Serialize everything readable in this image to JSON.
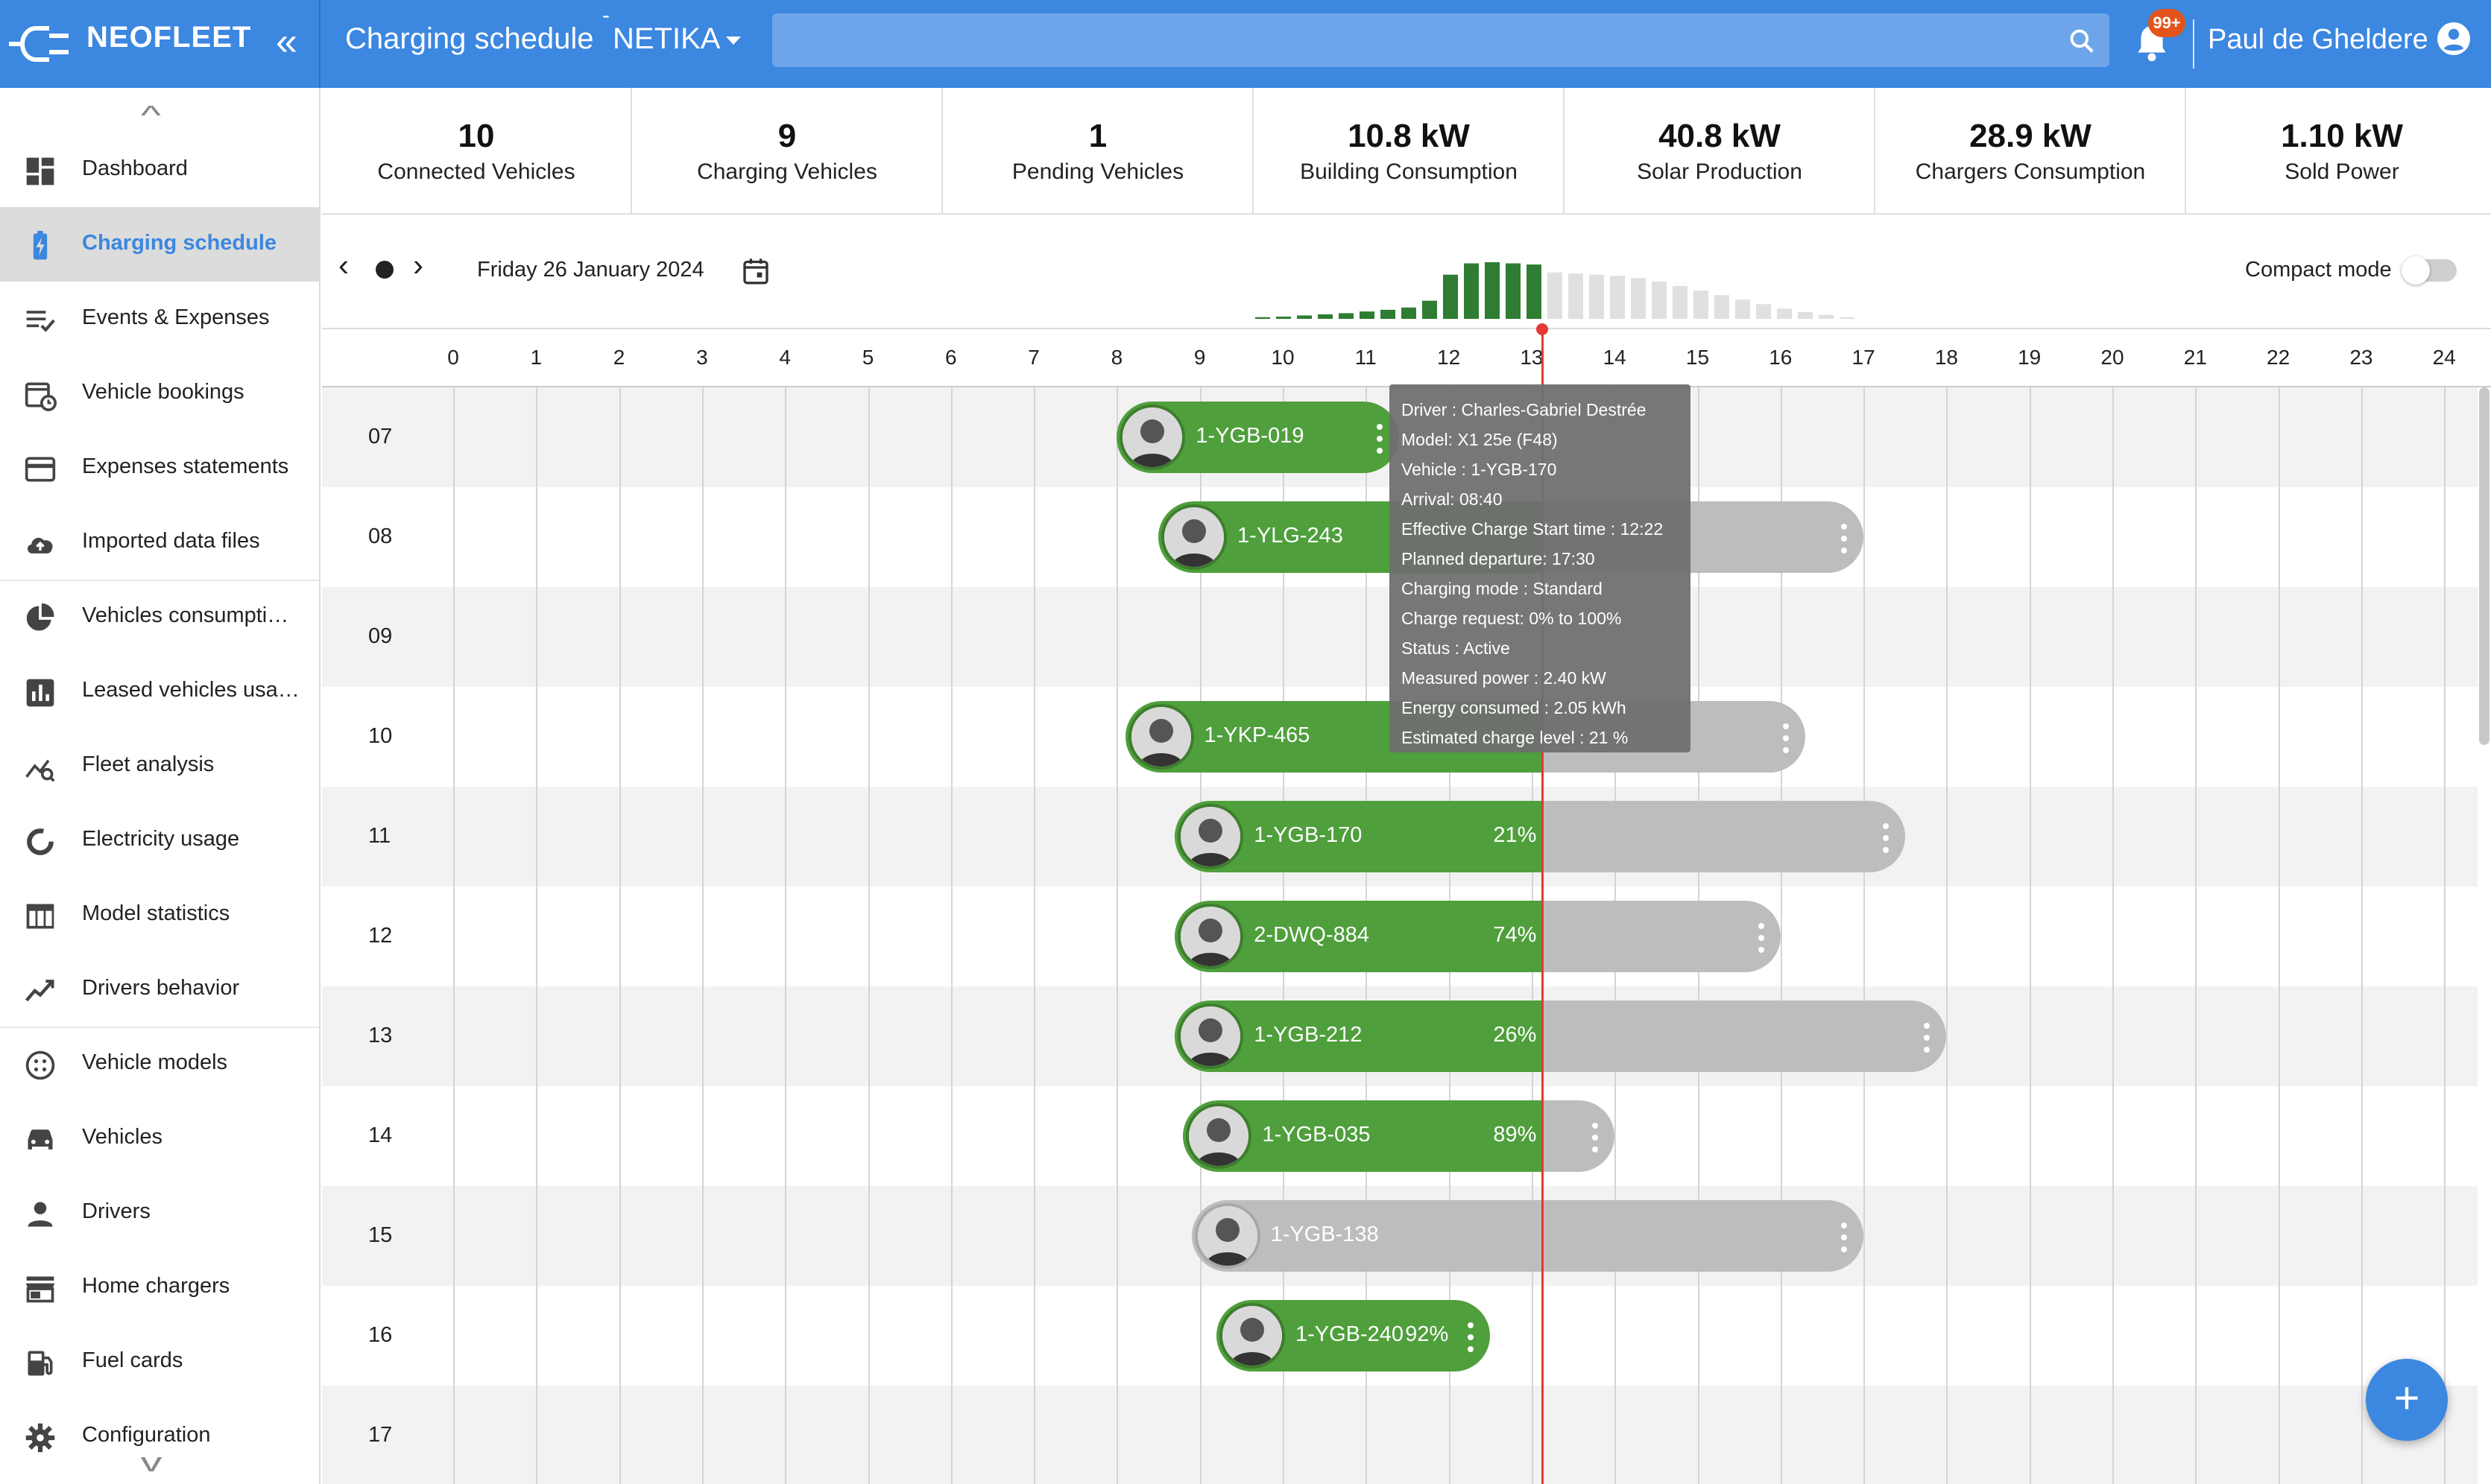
{
  "app": {
    "brand": "NEOFLEET",
    "page_title": "Charging schedule",
    "site": "NETIKA",
    "notifications_badge": "99+",
    "user_name": "Paul de Gheldere"
  },
  "sidebar": {
    "items": [
      {
        "label": "Dashboard",
        "icon": "dashboard-icon"
      },
      {
        "label": "Charging schedule",
        "icon": "battery-charging-icon",
        "active": true
      },
      {
        "label": "Events & Expenses",
        "icon": "events-list-icon"
      },
      {
        "label": "Vehicle bookings",
        "icon": "calendar-clock-icon"
      },
      {
        "label": "Expenses statements",
        "icon": "credit-card-icon"
      },
      {
        "label": "Imported data files",
        "icon": "cloud-upload-icon"
      },
      {
        "label": "Vehicles consumpti…",
        "icon": "pie-chart-icon"
      },
      {
        "label": "Leased vehicles usa…",
        "icon": "bar-chart-icon"
      },
      {
        "label": "Fleet analysis",
        "icon": "analytics-icon"
      },
      {
        "label": "Electricity usage",
        "icon": "donut-icon"
      },
      {
        "label": "Model statistics",
        "icon": "table-icon"
      },
      {
        "label": "Drivers behavior",
        "icon": "trend-icon"
      },
      {
        "label": "Vehicle models",
        "icon": "model-icon"
      },
      {
        "label": "Vehicles",
        "icon": "car-icon"
      },
      {
        "label": "Drivers",
        "icon": "person-icon"
      },
      {
        "label": "Home chargers",
        "icon": "store-icon"
      },
      {
        "label": "Fuel cards",
        "icon": "fuel-icon"
      },
      {
        "label": "Configuration",
        "icon": "gear-icon"
      }
    ]
  },
  "stats": [
    {
      "value": "10",
      "label": "Connected Vehicles"
    },
    {
      "value": "9",
      "label": "Charging Vehicles"
    },
    {
      "value": "1",
      "label": "Pending Vehicles"
    },
    {
      "value": "10.8 kW",
      "label": "Building Consumption"
    },
    {
      "value": "40.8 kW",
      "label": "Solar Production"
    },
    {
      "value": "28.9 kW",
      "label": "Chargers Consumption"
    },
    {
      "value": "1.10 kW",
      "label": "Sold Power"
    }
  ],
  "toolbar": {
    "date": "Friday 26 January 2024",
    "compact_label": "Compact mode",
    "compact_on": false
  },
  "hours": [
    "0",
    "1",
    "2",
    "3",
    "4",
    "5",
    "6",
    "7",
    "8",
    "9",
    "10",
    "11",
    "12",
    "13",
    "14",
    "15",
    "16",
    "17",
    "18",
    "19",
    "20",
    "21",
    "22",
    "23",
    "24"
  ],
  "now_hour": 13.13,
  "power_sparkline": {
    "past_color": "#2e7d32",
    "future_color": "#e0e0e0",
    "past": [
      0.03,
      0.04,
      0.06,
      0.08,
      0.1,
      0.13,
      0.16,
      0.2,
      0.32,
      0.78,
      0.98,
      1.0,
      0.98,
      0.96
    ],
    "future": [
      0.82,
      0.8,
      0.78,
      0.76,
      0.72,
      0.66,
      0.58,
      0.5,
      0.42,
      0.34,
      0.26,
      0.18,
      0.12,
      0.07,
      0.03
    ]
  },
  "rows": [
    {
      "label": "07",
      "plate": "1-YGB-019",
      "arrival": 8.0,
      "departure": 11.4,
      "charged_until": 11.4,
      "pct": "",
      "avatar": "driver-photo",
      "state": "charging"
    },
    {
      "label": "08",
      "plate": "1-YLG-243",
      "arrival": 8.5,
      "departure": 17.0,
      "charged_until": 13.13,
      "pct": "",
      "avatar": "driver-photo",
      "state": "charging"
    },
    {
      "label": "09",
      "plate": "",
      "arrival": null
    },
    {
      "label": "10",
      "plate": "1-YKP-465",
      "arrival": 8.1,
      "departure": 16.3,
      "charged_until": 13.13,
      "pct": "",
      "avatar": "driver-photo",
      "state": "charging"
    },
    {
      "label": "11",
      "plate": "1-YGB-170",
      "arrival": 8.7,
      "departure": 17.5,
      "charged_until": 13.13,
      "pct": "21%",
      "avatar": "driver-photo",
      "state": "charging"
    },
    {
      "label": "12",
      "plate": "2-DWQ-884",
      "arrival": 8.7,
      "departure": 16.0,
      "charged_until": 13.13,
      "pct": "74%",
      "avatar": "driver-photo",
      "state": "charging"
    },
    {
      "label": "13",
      "plate": "1-YGB-212",
      "arrival": 8.7,
      "departure": 18.0,
      "charged_until": 13.13,
      "pct": "26%",
      "avatar": "driver-photo",
      "state": "charging"
    },
    {
      "label": "14",
      "plate": "1-YGB-035",
      "arrival": 8.8,
      "departure": 14.0,
      "charged_until": 13.13,
      "pct": "89%",
      "avatar": "driver-photo",
      "state": "charging"
    },
    {
      "label": "15",
      "plate": "1-YGB-138",
      "arrival": 8.9,
      "departure": 17.0,
      "charged_until": 8.9,
      "pct": "",
      "avatar": "driver-photo",
      "state": "pending"
    },
    {
      "label": "16",
      "plate": "1-YGB-240",
      "arrival": 9.2,
      "departure": 12.5,
      "charged_until": 12.5,
      "pct": "92%",
      "avatar": "driver-photo",
      "state": "charging"
    },
    {
      "label": "17",
      "plate": "",
      "arrival": null
    }
  ],
  "tooltip": [
    "Driver : Charles-Gabriel Destrée",
    "Model: X1 25e (F48)",
    "Vehicle : 1-YGB-170",
    "Arrival: 08:40",
    "Effective Charge Start time : 12:22",
    "Planned departure: 17:30",
    "Charging mode : Standard",
    "Charge request: 0% to 100%",
    "Status : Active",
    "Measured power : 2.40 kW",
    "Energy consumed : 2.05 kWh",
    "Estimated charge level : 21 %"
  ],
  "colors": {
    "primary": "#3c87e0",
    "charging_green": "#4f9f3c",
    "pending_gray": "#bdbdbd",
    "now_line": "#e53935",
    "badge": "#e2541b"
  }
}
